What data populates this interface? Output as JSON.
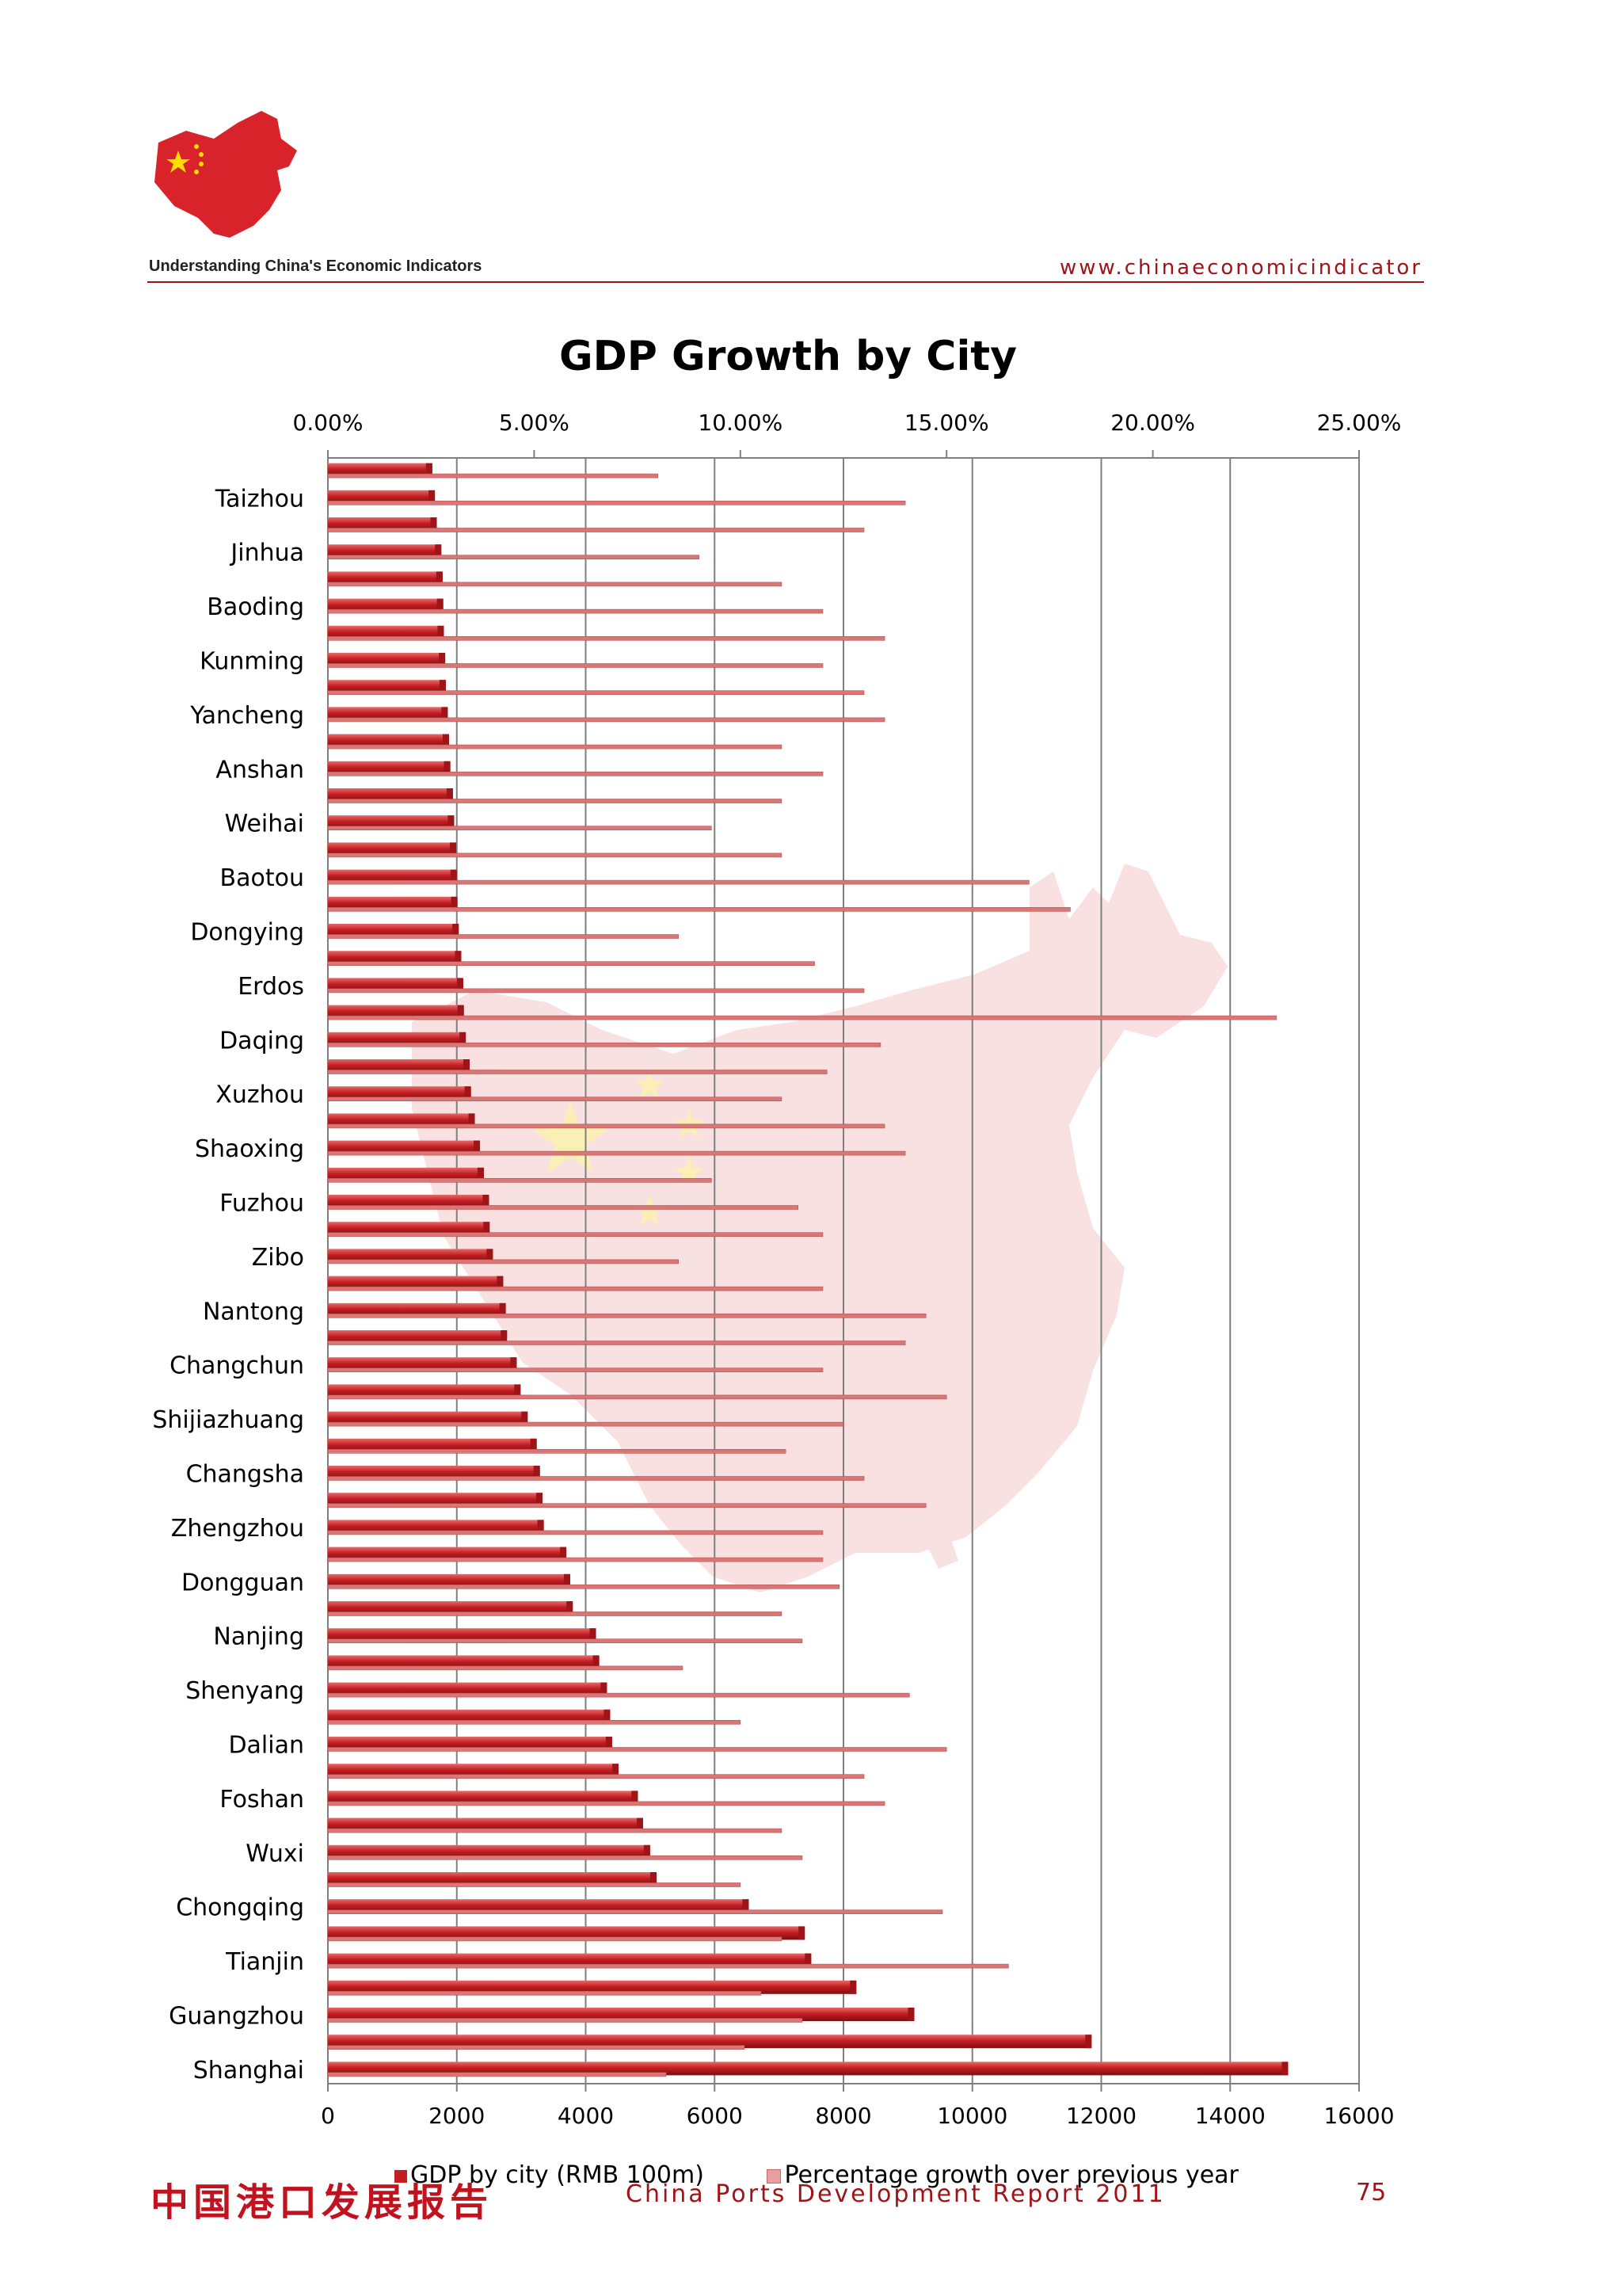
{
  "header": {
    "left_text": "Understanding China's Economic Indicators",
    "right_text": "www.chinaeconomicindicator"
  },
  "footer": {
    "chinese_title": "中国港口发展报告",
    "english_title": "China Ports Development Report 2011",
    "page_number": "75"
  },
  "colors": {
    "gdp_bar": "#c41e22",
    "growth_bar": "#d97777",
    "brand_red": "#a01418",
    "map_red": "#f4c9c9",
    "star_yellow": "#f6e27a"
  },
  "chart_data": {
    "type": "bar",
    "orientation": "horizontal",
    "title": "GDP Growth by City",
    "top_axis_ticks": [
      "0.00%",
      "5.00%",
      "10.00%",
      "15.00%",
      "20.00%",
      "25.00%"
    ],
    "bottom_axis_ticks": [
      "0",
      "2000",
      "4000",
      "6000",
      "8000",
      "10000",
      "12000",
      "14000",
      "16000"
    ],
    "top_axis_range": [
      0,
      25
    ],
    "bottom_axis_range": [
      0,
      16000
    ],
    "grid": "vertical lines at bottom-axis ticks",
    "legend_position": "bottom",
    "labeled_categories": [
      "Taizhou",
      "Jinhua",
      "Baoding",
      "Kunming",
      "Yancheng",
      "Anshan",
      "Weihai",
      "Baotou",
      "Dongying",
      "Erdos",
      "Daqing",
      "Xuzhou",
      "Shaoxing",
      "Fuzhou",
      "Zibo",
      "Nantong",
      "Changchun",
      "Shijiazhuang",
      "Changsha",
      "Zhengzhou",
      "Dongguan",
      "Nanjing",
      "Shenyang",
      "Dalian",
      "Foshan",
      "Wuxi",
      "Chongqing",
      "Tianjin",
      "Guangzhou",
      "Shanghai"
    ],
    "series": [
      {
        "name": "GDP by city (RMB 100m)",
        "values": [
          1620,
          1660,
          1690,
          1760,
          1780,
          1790,
          1800,
          1820,
          1830,
          1860,
          1880,
          1900,
          1940,
          1960,
          1990,
          2000,
          2010,
          2030,
          2070,
          2100,
          2110,
          2140,
          2200,
          2220,
          2280,
          2360,
          2420,
          2500,
          2510,
          2560,
          2720,
          2760,
          2780,
          2930,
          2990,
          3100,
          3240,
          3290,
          3330,
          3350,
          3700,
          3760,
          3800,
          4160,
          4210,
          4330,
          4380,
          4410,
          4510,
          4810,
          4890,
          5000,
          5100,
          6530,
          7400,
          7500,
          8200,
          9100,
          11850,
          14900
        ]
      },
      {
        "name": "Percentage growth over previous year",
        "values": [
          8.0,
          14.0,
          13.0,
          9.0,
          11.0,
          12.0,
          13.5,
          12.0,
          13.0,
          13.5,
          11.0,
          12.0,
          11.0,
          9.3,
          11.0,
          17.0,
          18.0,
          8.5,
          11.8,
          13.0,
          23.0,
          13.4,
          12.1,
          11.0,
          13.5,
          14.0,
          9.3,
          11.4,
          12.0,
          8.5,
          12.0,
          14.5,
          14.0,
          12.0,
          15.0,
          12.5,
          11.1,
          13.0,
          14.5,
          12.0,
          12.0,
          12.4,
          11.0,
          11.5,
          8.6,
          14.1,
          10.0,
          15.0,
          13.0,
          13.5,
          11.0,
          11.5,
          10.0,
          14.9,
          11.0,
          16.5,
          10.5,
          11.5,
          10.1,
          8.2
        ]
      }
    ]
  }
}
